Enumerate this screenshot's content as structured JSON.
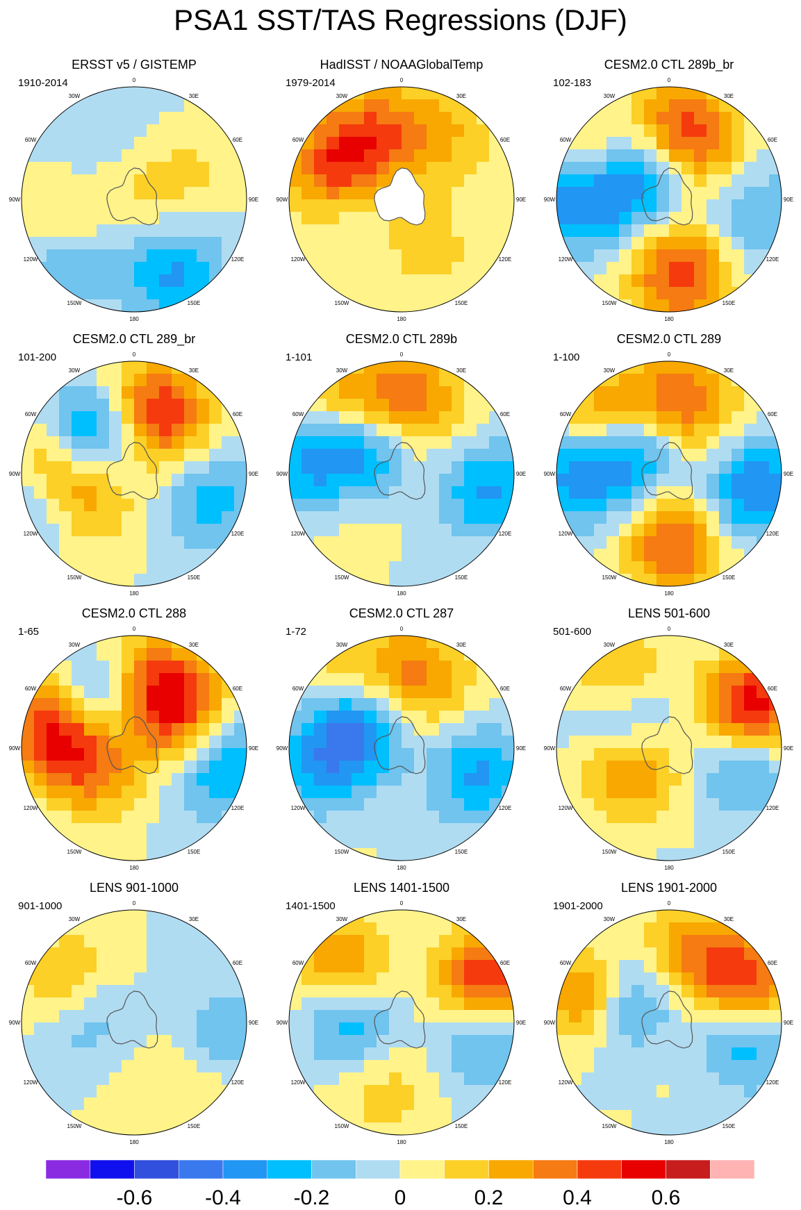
{
  "title": "PSA1 SST/TAS Regressions (DJF)",
  "chart_data": {
    "type": "heatmap",
    "projection": "south polar stereographic",
    "season": "DJF",
    "lon_labels": [
      "0",
      "30E",
      "60E",
      "90E",
      "120E",
      "150E",
      "180",
      "150W",
      "120W",
      "90W",
      "60W",
      "30W"
    ],
    "colorbar": {
      "colors": [
        "#8a2be2",
        "#1010ee",
        "#3050dd",
        "#3a78ee",
        "#2196f3",
        "#00bfff",
        "#70c4ee",
        "#b0dcf2",
        "#fff38a",
        "#fcd027",
        "#f8a800",
        "#f57b12",
        "#f53a0e",
        "#e80000",
        "#c81d1d",
        "#ffb3b3"
      ],
      "boundaries": [
        -0.7,
        -0.6,
        -0.5,
        -0.4,
        -0.3,
        -0.2,
        -0.1,
        0,
        0.1,
        0.2,
        0.3,
        0.4,
        0.5,
        0.6,
        0.7
      ],
      "tick_labels": [
        "-0.6",
        "-0.4",
        "-0.2",
        "0",
        "0.2",
        "0.4",
        "0.6"
      ]
    },
    "panels": [
      {
        "title": "ERSST v5 / GISTEMP",
        "period": "1910-2014",
        "centers": [
          {
            "lon": -150,
            "lat": -50,
            "value": -0.2
          },
          {
            "lon": -80,
            "lat": -55,
            "value": 0.15
          },
          {
            "lon": 30,
            "lat": -35,
            "value": -0.3
          },
          {
            "lon": -40,
            "lat": -35,
            "value": -0.2
          },
          {
            "lon": -170,
            "lat": -70,
            "value": 0.15
          },
          {
            "lon": 110,
            "lat": -45,
            "value": 0.1
          }
        ]
      },
      {
        "title": "HadISST / NOAAGlobalTemp",
        "period": "1979-2014",
        "centers": [
          {
            "lon": -115,
            "lat": -45,
            "value": 0.45
          },
          {
            "lon": -160,
            "lat": -45,
            "value": 0.3
          },
          {
            "lon": 150,
            "lat": -45,
            "value": 0.2
          },
          {
            "lon": -100,
            "lat": -62,
            "value": -0.1
          },
          {
            "lon": 30,
            "lat": -55,
            "value": 0.15
          }
        ]
      },
      {
        "title": "CESM2.0 CTL 289b_br",
        "period": "102-183",
        "centers": [
          {
            "lon": -120,
            "lat": -62,
            "value": -0.55
          },
          {
            "lon": -115,
            "lat": -40,
            "value": 0.5
          },
          {
            "lon": 165,
            "lat": -48,
            "value": 0.5
          },
          {
            "lon": -95,
            "lat": -30,
            "value": -0.55
          },
          {
            "lon": 10,
            "lat": -42,
            "value": 0.45
          },
          {
            "lon": 80,
            "lat": -35,
            "value": -0.2
          }
        ]
      },
      {
        "title": "CESM2.0 CTL 289_br",
        "period": "101-200",
        "centers": [
          {
            "lon": -130,
            "lat": -55,
            "value": -0.6
          },
          {
            "lon": 160,
            "lat": -50,
            "value": 0.55
          },
          {
            "lon": -100,
            "lat": -42,
            "value": 0.45
          },
          {
            "lon": -70,
            "lat": -60,
            "value": 0.3
          },
          {
            "lon": 70,
            "lat": -40,
            "value": -0.25
          },
          {
            "lon": -80,
            "lat": -30,
            "value": -0.3
          }
        ]
      },
      {
        "title": "CESM2.0 CTL 289b",
        "period": "1-101",
        "centers": [
          {
            "lon": -125,
            "lat": -58,
            "value": -0.55
          },
          {
            "lon": -140,
            "lat": -40,
            "value": 0.35
          },
          {
            "lon": 175,
            "lat": -45,
            "value": 0.4
          },
          {
            "lon": 80,
            "lat": -35,
            "value": -0.3
          },
          {
            "lon": -70,
            "lat": -50,
            "value": 0.15
          },
          {
            "lon": -90,
            "lat": -30,
            "value": -0.3
          }
        ]
      },
      {
        "title": "CESM2.0 CTL 289",
        "period": "1-100",
        "centers": [
          {
            "lon": -120,
            "lat": -58,
            "value": -0.5
          },
          {
            "lon": -130,
            "lat": -38,
            "value": 0.45
          },
          {
            "lon": 170,
            "lat": -45,
            "value": 0.4
          },
          {
            "lon": 80,
            "lat": -35,
            "value": -0.4
          },
          {
            "lon": 5,
            "lat": -45,
            "value": 0.4
          },
          {
            "lon": -90,
            "lat": -30,
            "value": -0.3
          }
        ]
      },
      {
        "title": "CESM2.0 CTL 288",
        "period": "1-65",
        "centers": [
          {
            "lon": -140,
            "lat": -55,
            "value": -0.5
          },
          {
            "lon": -110,
            "lat": -40,
            "value": 0.55
          },
          {
            "lon": 160,
            "lat": -50,
            "value": 0.5
          },
          {
            "lon": -75,
            "lat": -62,
            "value": 0.4
          },
          {
            "lon": 80,
            "lat": -35,
            "value": -0.35
          },
          {
            "lon": 120,
            "lat": -55,
            "value": 0.3
          }
        ]
      },
      {
        "title": "CESM2.0 CTL 287",
        "period": "1-72",
        "centers": [
          {
            "lon": -130,
            "lat": -58,
            "value": -0.55
          },
          {
            "lon": -140,
            "lat": -40,
            "value": 0.3
          },
          {
            "lon": 170,
            "lat": -48,
            "value": 0.4
          },
          {
            "lon": -80,
            "lat": -38,
            "value": -0.3
          },
          {
            "lon": 70,
            "lat": -40,
            "value": -0.3
          }
        ]
      },
      {
        "title": "LENS 501-600",
        "period": "501-600",
        "centers": [
          {
            "lon": -120,
            "lat": -55,
            "value": -0.45
          },
          {
            "lon": -140,
            "lat": -40,
            "value": 0.35
          },
          {
            "lon": 115,
            "lat": -32,
            "value": 0.6
          },
          {
            "lon": 80,
            "lat": -40,
            "value": -0.3
          },
          {
            "lon": -70,
            "lat": -62,
            "value": 0.4
          }
        ]
      },
      {
        "title": "LENS 901-1000",
        "period": "901-1000",
        "centers": [
          {
            "lon": -120,
            "lat": -42,
            "value": 0.3
          },
          {
            "lon": -100,
            "lat": -55,
            "value": -0.25
          },
          {
            "lon": 40,
            "lat": -40,
            "value": 0.15
          },
          {
            "lon": 80,
            "lat": -35,
            "value": -0.2
          }
        ]
      },
      {
        "title": "LENS 1401-1500",
        "period": "1401-1500",
        "centers": [
          {
            "lon": -130,
            "lat": -40,
            "value": 0.4
          },
          {
            "lon": -100,
            "lat": -55,
            "value": -0.35
          },
          {
            "lon": 115,
            "lat": -32,
            "value": 0.55
          },
          {
            "lon": 80,
            "lat": -40,
            "value": -0.3
          },
          {
            "lon": -10,
            "lat": -45,
            "value": 0.15
          }
        ]
      },
      {
        "title": "LENS 1901-2000",
        "period": "1901-2000",
        "centers": [
          {
            "lon": -110,
            "lat": -40,
            "value": 0.5
          },
          {
            "lon": -120,
            "lat": -58,
            "value": -0.5
          },
          {
            "lon": 165,
            "lat": -50,
            "value": 0.35
          },
          {
            "lon": 80,
            "lat": -40,
            "value": -0.3
          },
          {
            "lon": 115,
            "lat": -32,
            "value": 0.45
          }
        ]
      }
    ]
  }
}
